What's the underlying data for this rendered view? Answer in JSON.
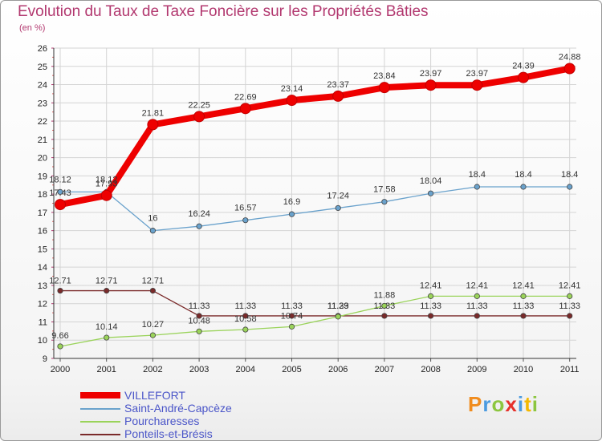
{
  "title": "Evolution du Taux de Taxe Foncière sur les Propriétés Bâties",
  "unit_label": "(en %)",
  "brand": [
    "P",
    "r",
    "o",
    "x",
    "i",
    "t",
    "i"
  ],
  "chart_data": {
    "type": "line",
    "title": "Evolution du Taux de Taxe Foncière sur les Propriétés Bâties",
    "ylabel": "(en %)",
    "xlabel": "",
    "x": [
      "2000",
      "2001",
      "2002",
      "2003",
      "2004",
      "2005",
      "2006",
      "2007",
      "2008",
      "2009",
      "2010",
      "2011"
    ],
    "ylim": [
      9,
      26
    ],
    "yticks": [
      9,
      10,
      11,
      12,
      13,
      14,
      15,
      16,
      17,
      18,
      19,
      20,
      21,
      22,
      23,
      24,
      25,
      26
    ],
    "grid": true,
    "legend_position": "bottom-left",
    "series": [
      {
        "name": "VILLEFORT",
        "color": "#ee0000",
        "values": [
          17.43,
          17.93,
          21.81,
          22.25,
          22.69,
          23.14,
          23.37,
          23.84,
          23.97,
          23.97,
          24.39,
          24.88
        ],
        "labels": [
          "17.43",
          "17.93",
          "21.81",
          "22.25",
          "22.69",
          "23.14",
          "23.37",
          "23.84",
          "23.97",
          "23.97",
          "24.39",
          "24.88"
        ]
      },
      {
        "name": "Saint-André-Capcèze",
        "color": "#6aa2cc",
        "values": [
          18.12,
          18.12,
          16,
          16.24,
          16.57,
          16.9,
          17.24,
          17.58,
          18.04,
          18.4,
          18.4,
          18.4
        ],
        "labels": [
          "18.12",
          "18.12",
          "16",
          "16.24",
          "16.57",
          "16.9",
          "17.24",
          "17.58",
          "18.04",
          "18.4",
          "18.4",
          "18.4"
        ]
      },
      {
        "name": "Pourcharesses",
        "color": "#9ad35a",
        "values": [
          9.66,
          10.14,
          10.27,
          10.48,
          10.58,
          10.74,
          11.29,
          11.88,
          12.41,
          12.41,
          12.41,
          12.41
        ],
        "labels": [
          "9.66",
          "10.14",
          "10.27",
          "10.48",
          "10.58",
          "10.74",
          "11.29",
          "11.88",
          "12.41",
          "12.41",
          "12.41",
          "12.41"
        ]
      },
      {
        "name": "Ponteils-et-Brésis",
        "color": "#7a2a2a",
        "values": [
          12.71,
          12.71,
          12.71,
          11.33,
          11.33,
          11.33,
          11.33,
          11.33,
          11.33,
          11.33,
          11.33,
          11.33
        ],
        "labels": [
          "12.71",
          "12.71",
          "12.71",
          "11.33",
          "11.33",
          "11.33",
          "11.33",
          "11.33",
          "11.33",
          "11.33",
          "11.33",
          "11.33"
        ]
      }
    ]
  }
}
